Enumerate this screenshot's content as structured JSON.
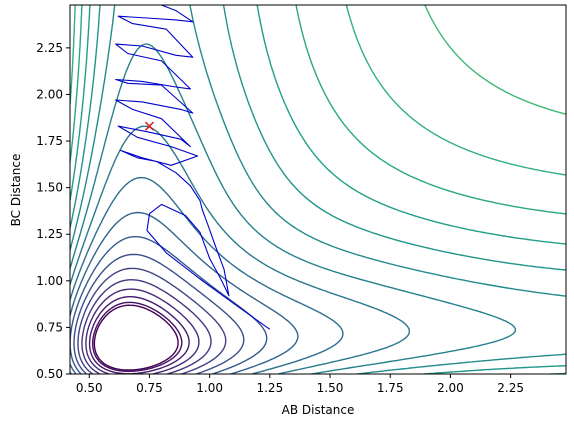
{
  "chart_data": {
    "type": "contour",
    "title": "",
    "xlabel": "AB Distance",
    "ylabel": "BC Distance",
    "xlim": [
      0.42,
      2.48
    ],
    "ylim": [
      0.5,
      2.48
    ],
    "xticks": [
      "0.50",
      "0.75",
      "1.00",
      "1.25",
      "1.50",
      "1.75",
      "2.00",
      "2.25"
    ],
    "yticks": [
      "0.50",
      "0.75",
      "1.00",
      "1.25",
      "1.50",
      "1.75",
      "2.00",
      "2.25"
    ],
    "colormap": "viridis",
    "contour_levels": 26,
    "grid": false,
    "legend": "none",
    "trajectory": {
      "color": "#0000cc",
      "points": [
        [
          1.25,
          0.74
        ],
        [
          1.12,
          0.86
        ],
        [
          0.96,
          1.01
        ],
        [
          0.82,
          1.15
        ],
        [
          0.74,
          1.27
        ],
        [
          0.75,
          1.36
        ],
        [
          0.8,
          1.41
        ],
        [
          0.9,
          1.35
        ],
        [
          0.96,
          1.26
        ],
        [
          1.0,
          1.12
        ],
        [
          1.05,
          1.0
        ],
        [
          1.08,
          0.92
        ],
        [
          1.06,
          1.06
        ],
        [
          1.02,
          1.2
        ],
        [
          0.99,
          1.31
        ],
        [
          0.97,
          1.38
        ],
        [
          0.96,
          1.43
        ],
        [
          0.92,
          1.51
        ],
        [
          0.86,
          1.58
        ],
        [
          0.78,
          1.64
        ],
        [
          0.7,
          1.66
        ],
        [
          0.63,
          1.7
        ],
        [
          0.72,
          1.66
        ],
        [
          0.84,
          1.62
        ],
        [
          0.95,
          1.67
        ],
        [
          0.84,
          1.72
        ],
        [
          0.7,
          1.77
        ],
        [
          0.62,
          1.83
        ],
        [
          0.74,
          1.8
        ],
        [
          0.88,
          1.76
        ],
        [
          0.92,
          1.72
        ],
        [
          0.8,
          1.87
        ],
        [
          0.68,
          1.92
        ],
        [
          0.61,
          1.97
        ],
        [
          0.72,
          1.96
        ],
        [
          0.88,
          1.92
        ],
        [
          0.93,
          1.9
        ],
        [
          0.8,
          2.05
        ],
        [
          0.66,
          2.06
        ],
        [
          0.61,
          2.08
        ],
        [
          0.72,
          2.07
        ],
        [
          0.86,
          2.04
        ],
        [
          0.92,
          2.03
        ],
        [
          0.8,
          2.18
        ],
        [
          0.66,
          2.22
        ],
        [
          0.61,
          2.27
        ],
        [
          0.72,
          2.26
        ],
        [
          0.86,
          2.21
        ],
        [
          0.93,
          2.2
        ],
        [
          0.82,
          2.35
        ],
        [
          0.68,
          2.38
        ],
        [
          0.62,
          2.42
        ],
        [
          0.74,
          2.41
        ],
        [
          0.86,
          2.4
        ],
        [
          0.93,
          2.39
        ],
        [
          0.86,
          2.45
        ],
        [
          0.8,
          2.48
        ]
      ]
    },
    "marker": {
      "symbol": "x",
      "x": 0.75,
      "y": 1.83,
      "color": "#d62728"
    }
  }
}
